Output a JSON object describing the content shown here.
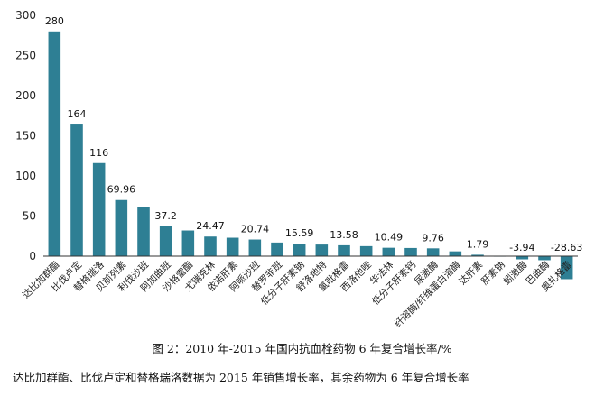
{
  "chart_data": {
    "type": "bar",
    "bar_color": "#2e7f94",
    "ylim": [
      -50,
      300
    ],
    "yticks": [
      0,
      50,
      100,
      150,
      200,
      250,
      300
    ],
    "categories": [
      "达比加群酯",
      "比伐卢定",
      "替格瑞洛",
      "贝前列素",
      "利伐沙班",
      "阿加曲班",
      "沙格雷酯",
      "尤瑞克林",
      "依诺肝素",
      "阿哌沙班",
      "替罗非班",
      "低分子肝素钠",
      "舒洛地特",
      "氯吡格雷",
      "西洛他唑",
      "华法林",
      "低分子肝素钙",
      "尿激酶",
      "纤溶酶/纤维蛋白溶酶",
      "达肝素",
      "肝素钠",
      "蚓激酶",
      "巴曲酶",
      "奥扎格雷"
    ],
    "values": [
      280,
      164,
      116,
      69.96,
      61,
      37.2,
      32,
      24.47,
      23,
      20.74,
      17,
      15.59,
      14.5,
      13.58,
      12.5,
      10.49,
      10.2,
      9.76,
      6,
      1.79,
      0.5,
      -3.94,
      -5,
      -28.63
    ],
    "data_labels": [
      "280",
      "164",
      "116",
      "69.96",
      "",
      "37.2",
      "",
      "24.47",
      "",
      "20.74",
      "",
      "15.59",
      "",
      "13.58",
      "",
      "10.49",
      "",
      "9.76",
      "",
      "1.79",
      "",
      "-3.94",
      "",
      "-28.63"
    ]
  },
  "caption": {
    "title": "图 2：2010 年-2015 年国内抗血栓药物 6 年复合增长率/%",
    "note": "达比加群酯、比伐卢定和替格瑞洛数据为 2015 年销售增长率，其余药物为 6 年复合增长率"
  }
}
